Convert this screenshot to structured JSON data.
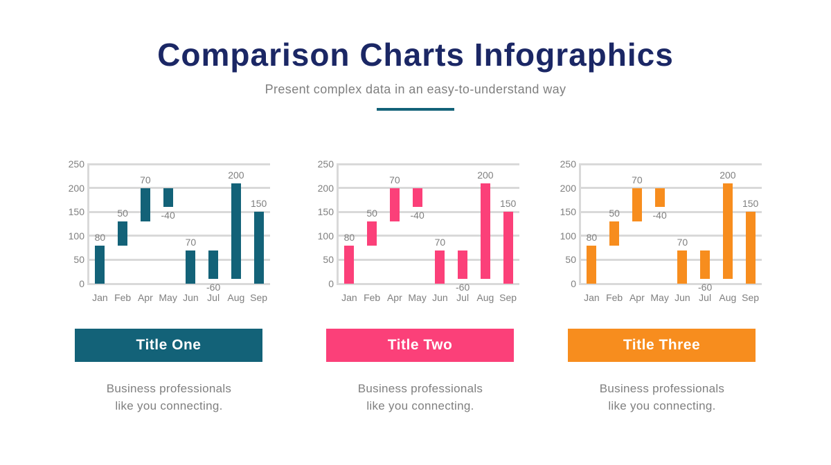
{
  "slide": {
    "title": "Comparison Charts Infographics",
    "subtitle": "Present complex data in an easy-to-understand way"
  },
  "colors": {
    "heading_navy": "#1B2765",
    "body_text_gray": "#7F7F7F",
    "gridline_gray": "#D9D9D9",
    "divider_teal": "#136278",
    "series_teal": "#136278",
    "series_pink": "#FB4079",
    "series_orange": "#F78D1E"
  },
  "chart_data": [
    {
      "type": "bar",
      "variant": "floating-column-waterfall",
      "card_title": "Title One",
      "description": "Business professionals like you connecting.",
      "color": "#136278",
      "categories": [
        "Jan",
        "Feb",
        "Apr",
        "May",
        "Jun",
        "Jul",
        "Aug",
        "Sep"
      ],
      "values": [
        80,
        50,
        70,
        -40,
        70,
        -60,
        200,
        150
      ],
      "bar_ranges": [
        [
          0,
          80
        ],
        [
          80,
          130
        ],
        [
          130,
          200
        ],
        [
          160,
          200
        ],
        [
          0,
          70
        ],
        [
          10,
          70
        ],
        [
          10,
          210
        ],
        [
          0,
          150
        ]
      ],
      "yticks": [
        0,
        50,
        100,
        150,
        200,
        250
      ],
      "ylim": [
        0,
        250
      ],
      "grid": true,
      "legend": false
    },
    {
      "type": "bar",
      "variant": "floating-column-waterfall",
      "card_title": "Title Two",
      "description": "Business professionals like you connecting.",
      "color": "#FB4079",
      "categories": [
        "Jan",
        "Feb",
        "Apr",
        "May",
        "Jun",
        "Jul",
        "Aug",
        "Sep"
      ],
      "values": [
        80,
        50,
        70,
        -40,
        70,
        -60,
        200,
        150
      ],
      "bar_ranges": [
        [
          0,
          80
        ],
        [
          80,
          130
        ],
        [
          130,
          200
        ],
        [
          160,
          200
        ],
        [
          0,
          70
        ],
        [
          10,
          70
        ],
        [
          10,
          210
        ],
        [
          0,
          150
        ]
      ],
      "yticks": [
        0,
        50,
        100,
        150,
        200,
        250
      ],
      "ylim": [
        0,
        250
      ],
      "grid": true,
      "legend": false
    },
    {
      "type": "bar",
      "variant": "floating-column-waterfall",
      "card_title": "Title Three",
      "description": "Business professionals like you connecting.",
      "color": "#F78D1E",
      "categories": [
        "Jan",
        "Feb",
        "Apr",
        "May",
        "Jun",
        "Jul",
        "Aug",
        "Sep"
      ],
      "values": [
        80,
        50,
        70,
        -40,
        70,
        -60,
        200,
        150
      ],
      "bar_ranges": [
        [
          0,
          80
        ],
        [
          80,
          130
        ],
        [
          130,
          200
        ],
        [
          160,
          200
        ],
        [
          0,
          70
        ],
        [
          10,
          70
        ],
        [
          10,
          210
        ],
        [
          0,
          150
        ]
      ],
      "yticks": [
        0,
        50,
        100,
        150,
        200,
        250
      ],
      "ylim": [
        0,
        250
      ],
      "grid": true,
      "legend": false
    }
  ]
}
